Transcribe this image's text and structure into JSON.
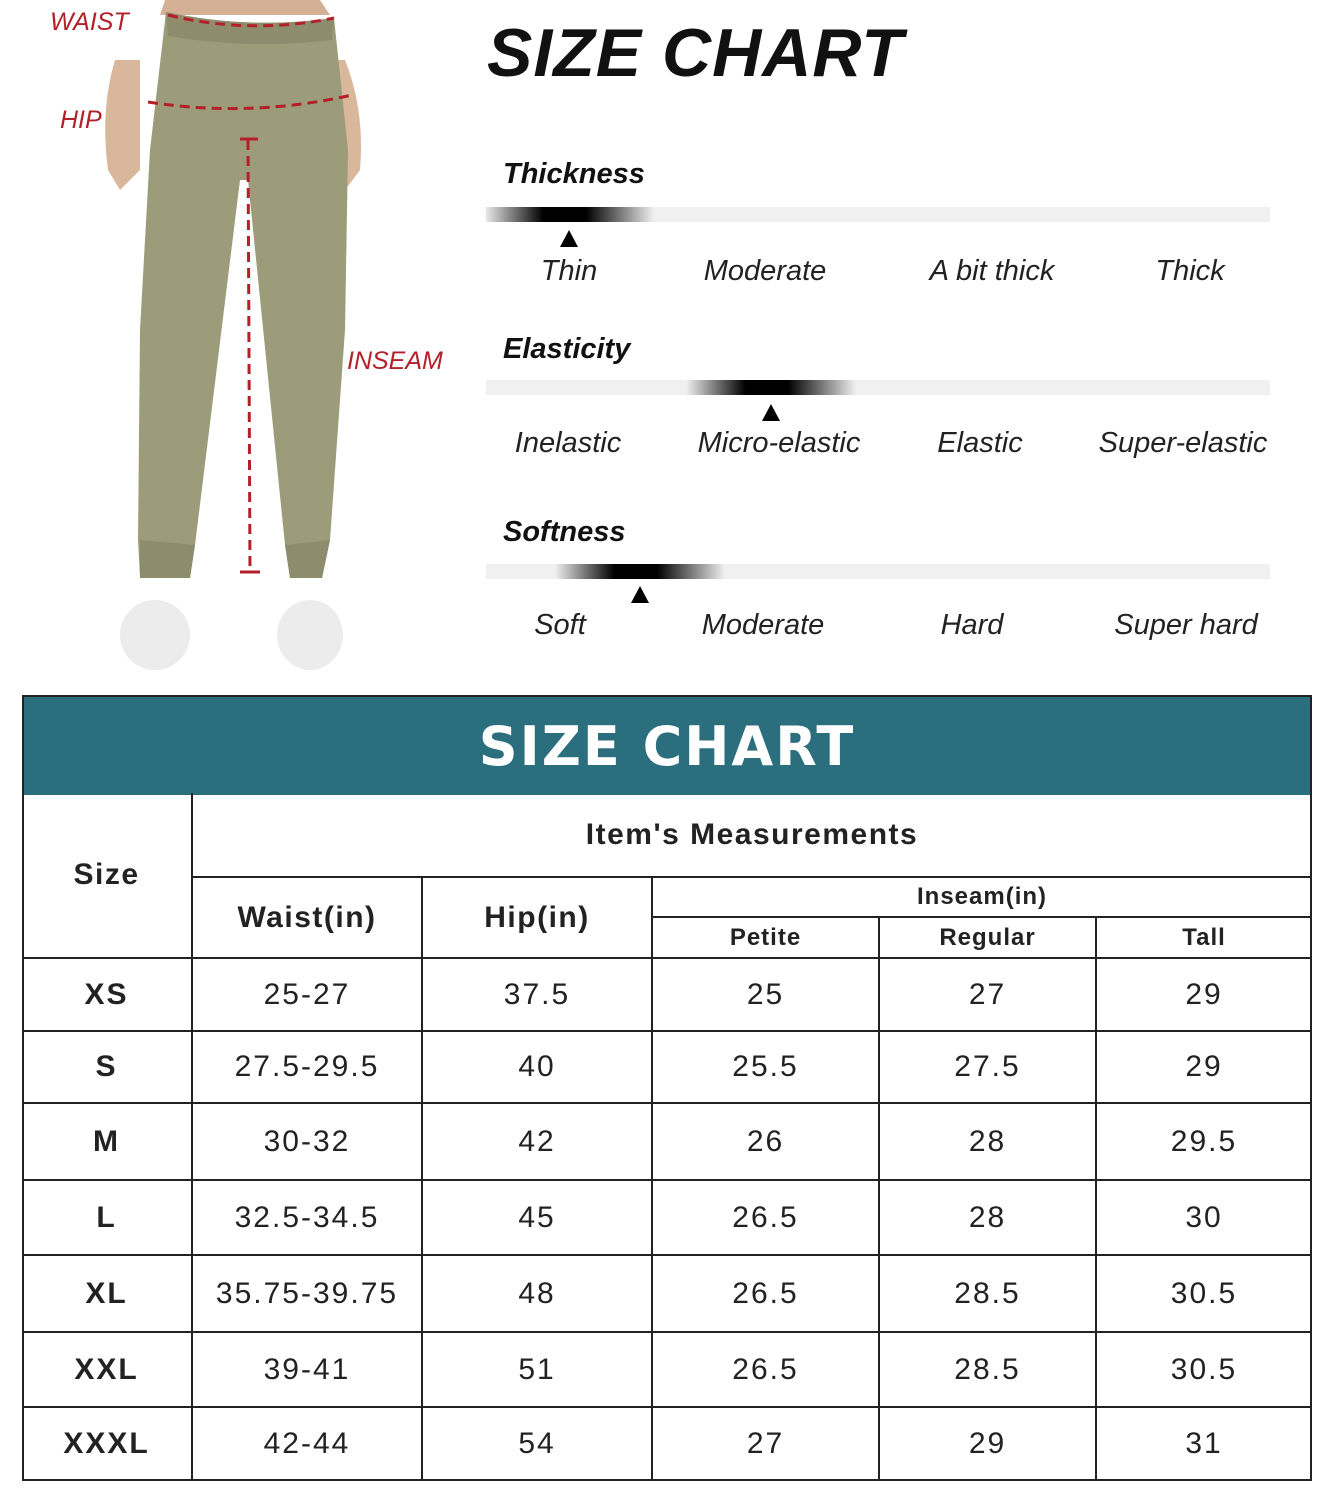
{
  "illustration": {
    "labels": {
      "waist": "WAIST",
      "hip": "HIP",
      "inseam": "INSEAM"
    },
    "pants_color": "#9c9c7a",
    "measure_line_color": "#b3202a"
  },
  "title": "SIZE CHART",
  "scales": [
    {
      "name": "Thickness",
      "options": [
        "Thin",
        "Moderate",
        "A bit thick",
        "Thick"
      ],
      "level": 0.106
    },
    {
      "name": "Elasticity",
      "options": [
        "Inelastic",
        "Micro-elastic",
        "Elastic",
        "Super-elastic"
      ],
      "level": 0.364
    },
    {
      "name": "Softness",
      "options": [
        "Soft",
        "Moderate",
        "Hard",
        "Super hard"
      ],
      "level": 0.196
    }
  ],
  "table": {
    "header": "SIZE CHART",
    "header_color": "#2b6f7e",
    "size_label": "Size",
    "group_label": "Item's Measurements",
    "columns": {
      "waist": "Waist(in)",
      "hip": "Hip(in)",
      "inseam": "Inseam(in)",
      "petite": "Petite",
      "regular": "Regular",
      "tall": "Tall"
    },
    "rows": [
      [
        "XS",
        "25-27",
        "37.5",
        "25",
        "27",
        "29"
      ],
      [
        "S",
        "27.5-29.5",
        "40",
        "25.5",
        "27.5",
        "29"
      ],
      [
        "M",
        "30-32",
        "42",
        "26",
        "28",
        "29.5"
      ],
      [
        "L",
        "32.5-34.5",
        "45",
        "26.5",
        "28",
        "30"
      ],
      [
        "XL",
        "35.75-39.75",
        "48",
        "26.5",
        "28.5",
        "30.5"
      ],
      [
        "XXL",
        "39-41",
        "51",
        "26.5",
        "28.5",
        "30.5"
      ],
      [
        "XXXL",
        "42-44",
        "54",
        "27",
        "29",
        "31"
      ]
    ]
  }
}
